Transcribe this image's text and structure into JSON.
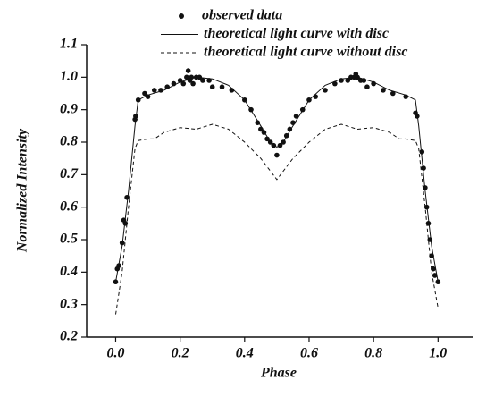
{
  "chart_data": {
    "type": "scatter",
    "xlabel": "Phase",
    "ylabel": "Normalized Intensity",
    "xlim": [
      -0.09,
      1.11
    ],
    "ylim": [
      0.2,
      1.1
    ],
    "xticks": [
      {
        "value": 0,
        "label": "0.0"
      },
      0.2,
      0.4,
      0.6,
      0.8,
      {
        "value": 1,
        "label": "1.0"
      }
    ],
    "yticks": [
      0.2,
      0.3,
      0.4,
      0.5,
      0.6,
      0.7,
      0.8,
      0.9,
      {
        "value": 1,
        "label": "1.0"
      },
      1.1
    ],
    "series": [
      {
        "name": "observed data",
        "style": "markers",
        "color": "#111111",
        "x": [
          0.0,
          0.005,
          0.01,
          0.02,
          0.025,
          0.03,
          0.035,
          0.06,
          0.062,
          0.07,
          0.09,
          0.1,
          0.12,
          0.14,
          0.16,
          0.18,
          0.2,
          0.21,
          0.22,
          0.225,
          0.23,
          0.235,
          0.24,
          0.25,
          0.26,
          0.27,
          0.29,
          0.3,
          0.33,
          0.36,
          0.4,
          0.42,
          0.44,
          0.45,
          0.46,
          0.47,
          0.48,
          0.49,
          0.5,
          0.51,
          0.52,
          0.53,
          0.54,
          0.55,
          0.56,
          0.58,
          0.6,
          0.62,
          0.65,
          0.68,
          0.7,
          0.72,
          0.73,
          0.74,
          0.745,
          0.75,
          0.76,
          0.77,
          0.78,
          0.8,
          0.83,
          0.86,
          0.9,
          0.93,
          0.935,
          0.95,
          0.955,
          0.96,
          0.965,
          0.97,
          0.975,
          0.98,
          0.985,
          0.99,
          1.0
        ],
        "y": [
          0.37,
          0.41,
          0.42,
          0.49,
          0.56,
          0.55,
          0.63,
          0.87,
          0.88,
          0.93,
          0.95,
          0.94,
          0.96,
          0.96,
          0.97,
          0.98,
          0.99,
          0.98,
          1.0,
          1.02,
          0.99,
          1.0,
          0.98,
          1.0,
          1.0,
          0.99,
          0.99,
          0.97,
          0.97,
          0.96,
          0.93,
          0.9,
          0.86,
          0.84,
          0.83,
          0.81,
          0.8,
          0.79,
          0.76,
          0.79,
          0.8,
          0.82,
          0.84,
          0.86,
          0.88,
          0.9,
          0.93,
          0.94,
          0.96,
          0.98,
          0.99,
          0.99,
          1.0,
          1.0,
          1.01,
          1.0,
          0.99,
          0.99,
          0.97,
          0.98,
          0.96,
          0.95,
          0.94,
          0.89,
          0.88,
          0.77,
          0.72,
          0.66,
          0.6,
          0.55,
          0.5,
          0.45,
          0.41,
          0.39,
          0.37
        ]
      },
      {
        "name": "theoretical light curve with disc",
        "style": "solid",
        "color": "#111111",
        "x": [
          0.0,
          0.02,
          0.04,
          0.06,
          0.07,
          0.1,
          0.15,
          0.2,
          0.25,
          0.3,
          0.35,
          0.4,
          0.45,
          0.48,
          0.5,
          0.52,
          0.55,
          0.6,
          0.65,
          0.7,
          0.75,
          0.8,
          0.85,
          0.9,
          0.93,
          0.94,
          0.96,
          0.98,
          1.0
        ],
        "y": [
          0.37,
          0.48,
          0.65,
          0.85,
          0.93,
          0.945,
          0.96,
          0.985,
          1.0,
          0.995,
          0.975,
          0.93,
          0.85,
          0.8,
          0.785,
          0.8,
          0.85,
          0.93,
          0.975,
          0.995,
          1.0,
          0.985,
          0.96,
          0.945,
          0.93,
          0.85,
          0.65,
          0.48,
          0.37
        ]
      },
      {
        "name": "theoretical light curve without disc",
        "style": "dashed",
        "color": "#111111",
        "x": [
          0.0,
          0.02,
          0.04,
          0.06,
          0.07,
          0.1,
          0.12,
          0.15,
          0.2,
          0.25,
          0.3,
          0.35,
          0.4,
          0.45,
          0.5,
          0.55,
          0.6,
          0.65,
          0.7,
          0.75,
          0.8,
          0.85,
          0.88,
          0.9,
          0.93,
          0.94,
          0.96,
          0.98,
          1.0
        ],
        "y": [
          0.27,
          0.4,
          0.6,
          0.78,
          0.805,
          0.81,
          0.81,
          0.83,
          0.845,
          0.84,
          0.855,
          0.84,
          0.8,
          0.75,
          0.685,
          0.75,
          0.8,
          0.84,
          0.855,
          0.84,
          0.845,
          0.83,
          0.81,
          0.81,
          0.805,
          0.78,
          0.6,
          0.4,
          0.29
        ]
      }
    ]
  }
}
